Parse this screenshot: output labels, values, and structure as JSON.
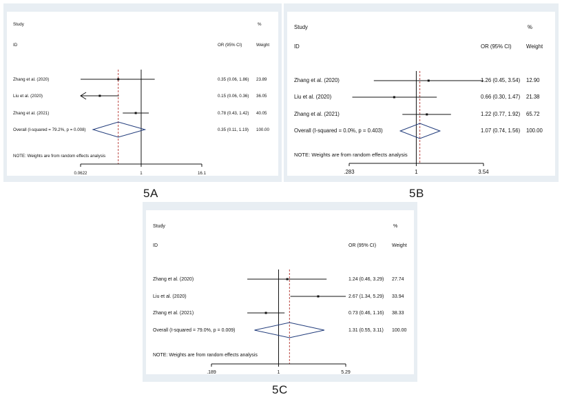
{
  "chart_data": [
    {
      "type": "forest",
      "label": "5A",
      "header": {
        "study": "Study",
        "id": "ID",
        "or_ci": "OR (95% CI)",
        "pct": "%",
        "weight": "Weight"
      },
      "axis_scale": "log",
      "axis_ticks": [
        "0.0622",
        "1",
        "16.1"
      ],
      "xlim": [
        0.0622,
        16.1
      ],
      "reference_line": 1,
      "overall_line": 0.35,
      "studies": [
        {
          "name": "Zhang et al. (2020)",
          "or": 0.35,
          "ci": [
            0.06,
            1.86
          ],
          "or_text": "0.35 (0.06, 1.86)",
          "weight": "23.89",
          "arrow_left": false
        },
        {
          "name": "Liu et al. (2020)",
          "or": 0.15,
          "ci": [
            0.06,
            0.36
          ],
          "or_text": "0.15 (0.06, 0.36)",
          "weight": "36.05",
          "arrow_left": true
        },
        {
          "name": "Zhang et al. (2021)",
          "or": 0.78,
          "ci": [
            0.43,
            1.42
          ],
          "or_text": "0.78 (0.43, 1.42)",
          "weight": "40.05",
          "arrow_left": false
        }
      ],
      "overall": {
        "name": "Overall  (I-squared = 79.2%, p = 0.008)",
        "or": 0.35,
        "ci": [
          0.11,
          1.19
        ],
        "or_text": "0.35 (0.11, 1.19)",
        "weight": "100.00"
      },
      "note": "NOTE: Weights are from random effects analysis"
    },
    {
      "type": "forest",
      "label": "5B",
      "header": {
        "study": "Study",
        "id": "ID",
        "or_ci": "OR (95% CI)",
        "pct": "%",
        "weight": "Weight"
      },
      "axis_scale": "log",
      "axis_ticks": [
        ".283",
        "1",
        "3.54"
      ],
      "xlim": [
        0.283,
        3.54
      ],
      "reference_line": 1,
      "overall_line": 1.07,
      "studies": [
        {
          "name": "Zhang et al. (2020)",
          "or": 1.26,
          "ci": [
            0.45,
            3.54
          ],
          "or_text": "1.26 (0.45, 3.54)",
          "weight": "12.90",
          "arrow_left": false
        },
        {
          "name": "Liu et al. (2020)",
          "or": 0.66,
          "ci": [
            0.3,
            1.47
          ],
          "or_text": "0.66 (0.30, 1.47)",
          "weight": "21.38",
          "arrow_left": false
        },
        {
          "name": "Zhang et al. (2021)",
          "or": 1.22,
          "ci": [
            0.77,
            1.92
          ],
          "or_text": "1.22 (0.77, 1.92)",
          "weight": "65.72",
          "arrow_left": false
        }
      ],
      "overall": {
        "name": "Overall  (I-squared = 0.0%, p = 0.403)",
        "or": 1.07,
        "ci": [
          0.74,
          1.56
        ],
        "or_text": "1.07 (0.74, 1.56)",
        "weight": "100.00"
      },
      "note": "NOTE: Weights are from random effects analysis"
    },
    {
      "type": "forest",
      "label": "5C",
      "header": {
        "study": "Study",
        "id": "ID",
        "or_ci": "OR (95% CI)",
        "pct": "%",
        "weight": "Weight"
      },
      "axis_scale": "log",
      "axis_ticks": [
        ".189",
        "1",
        "5.29"
      ],
      "xlim": [
        0.189,
        5.29
      ],
      "reference_line": 1,
      "overall_line": 1.31,
      "studies": [
        {
          "name": "Zhang et al. (2020)",
          "or": 1.24,
          "ci": [
            0.46,
            3.29
          ],
          "or_text": "1.24 (0.46, 3.29)",
          "weight": "27.74",
          "arrow_left": false
        },
        {
          "name": "Liu et al. (2020)",
          "or": 2.67,
          "ci": [
            1.34,
            5.29
          ],
          "or_text": "2.67 (1.34, 5.29)",
          "weight": "33.94",
          "arrow_left": false
        },
        {
          "name": "Zhang et al. (2021)",
          "or": 0.73,
          "ci": [
            0.46,
            1.16
          ],
          "or_text": "0.73 (0.46, 1.16)",
          "weight": "38.33",
          "arrow_left": false
        }
      ],
      "overall": {
        "name": "Overall  (I-squared = 79.0%, p = 0.009)",
        "or": 1.31,
        "ci": [
          0.55,
          3.11
        ],
        "or_text": "1.31 (0.55, 3.11)",
        "weight": "100.00"
      },
      "note": "NOTE: Weights are from random effects analysis"
    }
  ],
  "colors": {
    "panel_bg": "#e8eef3",
    "plot_bg": "#ffffff",
    "diamond": "#1f3a7a",
    "dashed_line": "#b3312c",
    "line": "#111111"
  }
}
